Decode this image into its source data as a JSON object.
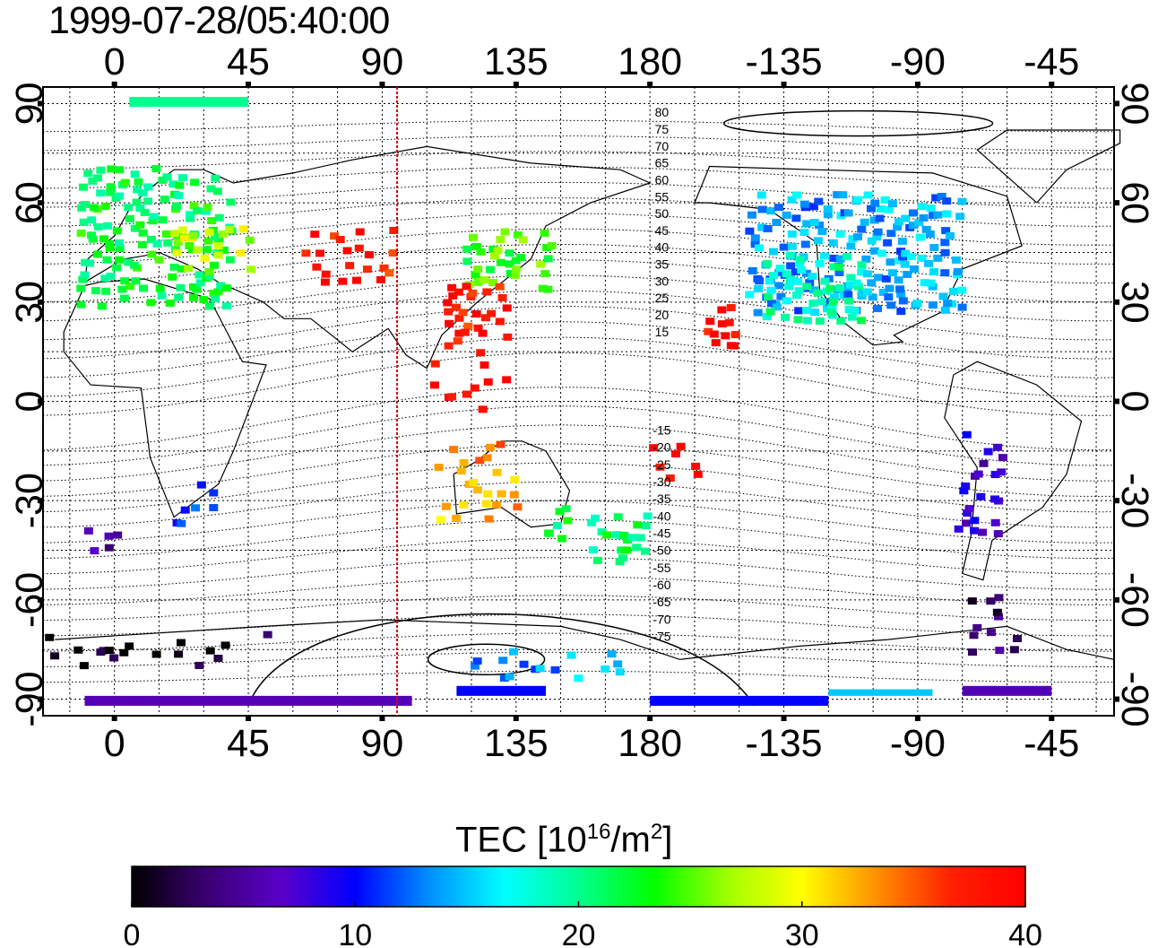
{
  "title": "1999-07-28/05:40:00",
  "map": {
    "lon_tick_labels": [
      "0",
      "45",
      "90",
      "135",
      "180",
      "-135",
      "-90",
      "-45"
    ],
    "lat_tick_labels": [
      "90",
      "60",
      "30",
      "0",
      "-30",
      "-60",
      "-90"
    ],
    "lon_ticks": [
      0,
      45,
      90,
      135,
      180,
      225,
      270,
      315
    ],
    "lat_ticks": [
      90,
      60,
      30,
      0,
      -30,
      -60,
      -90
    ],
    "lon_range": [
      -24,
      336
    ],
    "lat_range": [
      -95,
      95
    ],
    "terminator_lon": 95,
    "terminator_color": "#e00000",
    "contour_labels_north": [
      "80",
      "75",
      "70",
      "65",
      "60",
      "55",
      "50",
      "45",
      "40",
      "35",
      "30",
      "25",
      "20",
      "15"
    ],
    "contour_labels_south": [
      "-15",
      "-20",
      "-25",
      "-30",
      "-35",
      "-40",
      "-45",
      "-50",
      "-55",
      "-60",
      "-65",
      "-70",
      "-75"
    ],
    "contour_label_lon": 184
  },
  "colorbar": {
    "label_main": "TEC  [10",
    "label_exp": "16",
    "label_unit": "/m",
    "label_exp2": "2",
    "label_end": "]",
    "ticks": [
      "0",
      "10",
      "20",
      "30",
      "40"
    ],
    "range": [
      0,
      40
    ],
    "colors": [
      "#000000",
      "#3a0070",
      "#5a00c8",
      "#0000ff",
      "#0090ff",
      "#00ffff",
      "#00ff90",
      "#00ff00",
      "#a0ff00",
      "#ffff00",
      "#ff9000",
      "#ff2000",
      "#ff0000"
    ]
  },
  "chart_data": {
    "type": "scatter",
    "title": "1999-07-28/05:40:00",
    "xlabel": "",
    "ylabel": "",
    "xlim": [
      -24,
      336
    ],
    "ylim": [
      -95,
      95
    ],
    "value_label": "TEC  [10^16/m^2]",
    "value_range": [
      0,
      40
    ],
    "regions": [
      {
        "lon": [
          -10,
          40
        ],
        "lat": [
          30,
          70
        ],
        "tec": 22,
        "step": 3
      },
      {
        "lon": [
          20,
          45
        ],
        "lat": [
          40,
          55
        ],
        "tec": 28,
        "step": 4
      },
      {
        "lon": [
          65,
          95
        ],
        "lat": [
          38,
          50
        ],
        "tec": 38,
        "step": 4
      },
      {
        "lon": [
          120,
          148
        ],
        "lat": [
          35,
          50
        ],
        "tec": 24,
        "step": 3
      },
      {
        "lon": [
          112,
          135
        ],
        "lat": [
          22,
          35
        ],
        "tec": 38,
        "step": 3
      },
      {
        "lon": [
          105,
          130
        ],
        "lat": [
          0,
          22
        ],
        "tec": 39,
        "step": 5
      },
      {
        "lon": [
          110,
          135
        ],
        "lat": [
          -35,
          -15
        ],
        "tec": 33,
        "step": 4
      },
      {
        "lon": [
          140,
          155
        ],
        "lat": [
          -40,
          -30
        ],
        "tec": 22,
        "step": 4
      },
      {
        "lon": [
          160,
          178
        ],
        "lat": [
          -48,
          -36
        ],
        "tec": 21,
        "step": 3
      },
      {
        "lon": [
          183,
          198
        ],
        "lat": [
          -22,
          -14
        ],
        "tec": 39,
        "step": 4
      },
      {
        "lon": [
          200,
          210
        ],
        "lat": [
          18,
          27
        ],
        "tec": 39,
        "step": 3
      },
      {
        "lon": [
          215,
          285
        ],
        "lat": [
          28,
          62
        ],
        "tec": 14,
        "step": 3
      },
      {
        "lon": [
          220,
          250
        ],
        "lat": [
          25,
          45
        ],
        "tec": 19,
        "step": 3
      },
      {
        "lon": [
          285,
          300
        ],
        "lat": [
          -40,
          -10
        ],
        "tec": 7,
        "step": 4
      },
      {
        "lon": [
          290,
          305
        ],
        "lat": [
          -75,
          -58
        ],
        "tec": 3,
        "step": 4
      },
      {
        "lon": [
          -20,
          50
        ],
        "lat": [
          -78,
          -70
        ],
        "tec": 1,
        "step": 5
      },
      {
        "lon": [
          20,
          35
        ],
        "lat": [
          -35,
          -25
        ],
        "tec": 10,
        "step": 4
      },
      {
        "lon": [
          -10,
          5
        ],
        "lat": [
          -45,
          -40
        ],
        "tec": 4,
        "step": 4
      },
      {
        "lon": [
          120,
          170
        ],
        "lat": [
          -82,
          -74
        ],
        "tec": 14,
        "step": 5
      }
    ],
    "bands": [
      {
        "lon": [
          -10,
          100
        ],
        "lat": [
          -92,
          -89
        ],
        "tec": 6
      },
      {
        "lon": [
          115,
          145
        ],
        "lat": [
          -89,
          -86
        ],
        "tec": 10
      },
      {
        "lon": [
          180,
          240
        ],
        "lat": [
          -92,
          -89
        ],
        "tec": 10
      },
      {
        "lon": [
          240,
          275
        ],
        "lat": [
          -89,
          -87
        ],
        "tec": 15
      },
      {
        "lon": [
          285,
          315
        ],
        "lat": [
          -89,
          -86
        ],
        "tec": 6
      },
      {
        "lon": [
          5,
          45
        ],
        "lat": [
          89,
          92
        ],
        "tec": 20
      }
    ]
  }
}
